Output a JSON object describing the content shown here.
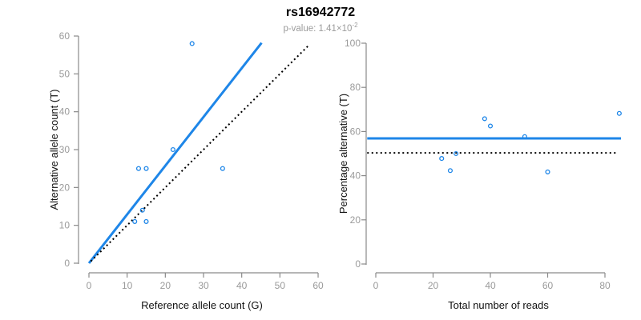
{
  "figure": {
    "title": "rs16942772",
    "p_value": {
      "prefix": "p-value: 1.41×10",
      "exponent": "-2"
    }
  },
  "colors": {
    "accent_blue": "#1E86E8",
    "line_black": "#000000",
    "axis_gray": "#8a8a8a",
    "tick_label_gray": "#9a9a9a",
    "title_black": "#000000",
    "subtitle_gray": "#9b9b9b",
    "background": "#ffffff"
  },
  "chart_data": [
    {
      "name": "allele-count-scatter",
      "type": "scatter",
      "xlabel": "Reference allele count (G)",
      "ylabel": "Alternative allele count (T)",
      "xlim": [
        0,
        60
      ],
      "ylim": [
        0,
        60
      ],
      "xticks": [
        0,
        10,
        20,
        30,
        40,
        50,
        60
      ],
      "yticks": [
        0,
        10,
        20,
        30,
        40,
        50,
        60
      ],
      "grid": false,
      "legend": "none",
      "points": [
        [
          27,
          58
        ],
        [
          22,
          30
        ],
        [
          13,
          25
        ],
        [
          15,
          25
        ],
        [
          35,
          25
        ],
        [
          14,
          14
        ],
        [
          12,
          11
        ],
        [
          15,
          11
        ]
      ],
      "lines": [
        {
          "name": "fit-line",
          "style": "solid",
          "color_key": "accent_blue",
          "width": 3,
          "x1": 0,
          "y1": 0,
          "x2": 45.2,
          "y2": 58.2
        },
        {
          "name": "identity-line",
          "style": "dotted",
          "color_key": "line_black",
          "width": 2,
          "x1": 0.5,
          "y1": 0.5,
          "x2": 57.8,
          "y2": 57.8
        }
      ]
    },
    {
      "name": "reads-vs-percentage-scatter",
      "type": "scatter",
      "xlabel": "Total number of reads",
      "ylabel": "Percentage alternative (T)",
      "xlim": [
        0,
        88
      ],
      "ylim": [
        0,
        100
      ],
      "xticks": [
        0,
        20,
        40,
        60,
        80
      ],
      "yticks": [
        0,
        20,
        40,
        60,
        80,
        100
      ],
      "grid": false,
      "legend": "none",
      "points": [
        [
          23,
          47.8
        ],
        [
          26,
          42.3
        ],
        [
          28,
          50
        ],
        [
          38,
          65.8
        ],
        [
          40,
          62.5
        ],
        [
          52,
          57.7
        ],
        [
          60,
          41.7
        ],
        [
          85,
          68.2
        ]
      ],
      "lines": [
        {
          "name": "mean-percentage-line",
          "style": "solid",
          "color_key": "accent_blue",
          "width": 3,
          "x1": -3,
          "y1": 56.9,
          "x2": 85.6,
          "y2": 56.9
        },
        {
          "name": "expected-50pct-line",
          "style": "dotted",
          "color_key": "line_black",
          "width": 2,
          "x1": -3,
          "y1": 50.3,
          "x2": 84.2,
          "y2": 50.3
        }
      ]
    }
  ]
}
